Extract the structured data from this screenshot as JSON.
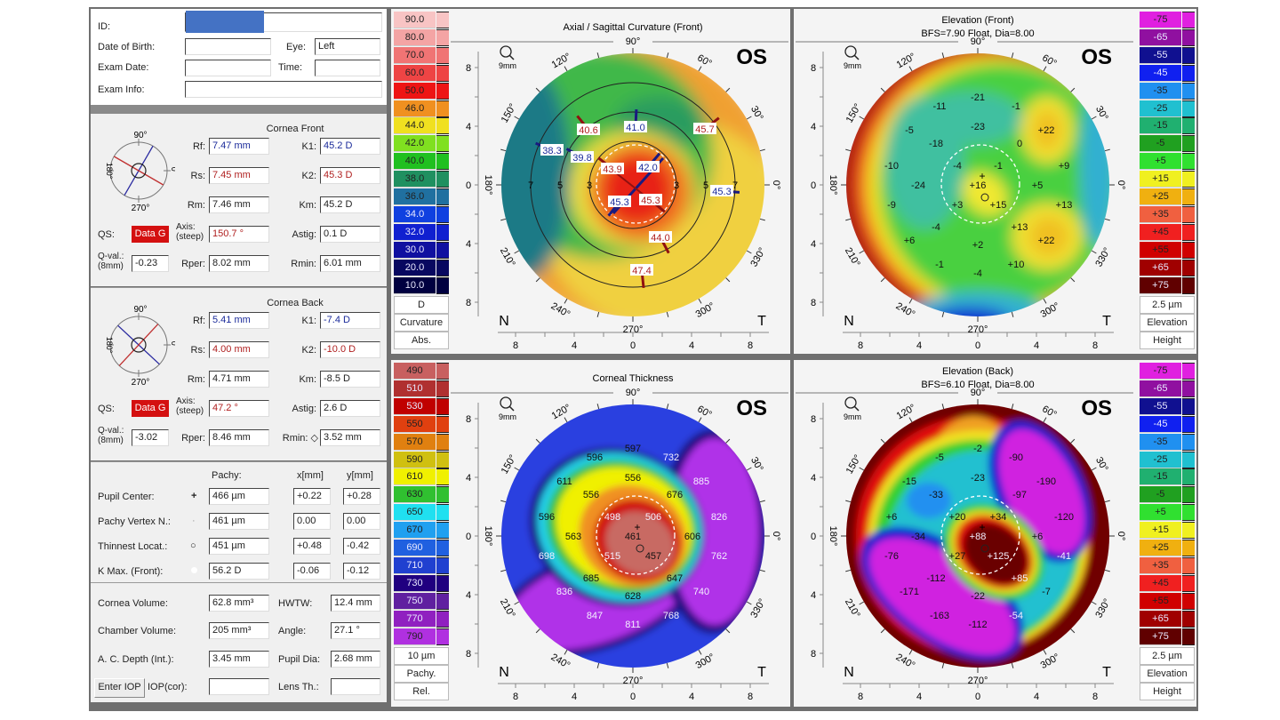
{
  "patient": {
    "id_label": "ID:",
    "dob_label": "Date of Birth:",
    "eye_label": "Eye:",
    "eye": "Left",
    "exam_date_label": "Exam Date:",
    "time_label": "Time:",
    "exam_info_label": "Exam Info:",
    "redaction_color": "#4472c4"
  },
  "compass_labels": {
    "top": "90°",
    "bottom": "270°",
    "left": "180°",
    "right": "0°"
  },
  "cornea_front": {
    "title": "Cornea Front",
    "rf_label": "Rf:",
    "rf": "7.47 mm",
    "rs_label": "Rs:",
    "rs": "7.45 mm",
    "rm_label": "Rm:",
    "rm": "7.46 mm",
    "k1_label": "K1:",
    "k1": "45.2 D",
    "k2_label": "K2:",
    "k2": "45.3 D",
    "km_label": "Km:",
    "km": "45.2 D",
    "qs_label": "QS:",
    "qs": "Data G",
    "axis_label": "Axis:",
    "axis_sub": "(steep)",
    "axis": "150.7 °",
    "astig_label": "Astig:",
    "astig": "0.1 D",
    "qval_label": "Q-val.:",
    "qval_sub": "(8mm)",
    "qval": "-0.23",
    "rper_label": "Rper:",
    "rper": "8.02 mm",
    "rmin_label": "Rmin:",
    "rmin": "6.01 mm"
  },
  "cornea_back": {
    "title": "Cornea Back",
    "rf_label": "Rf:",
    "rf": "5.41 mm",
    "rs_label": "Rs:",
    "rs": "4.00 mm",
    "rm_label": "Rm:",
    "rm": "4.71 mm",
    "k1_label": "K1:",
    "k1": "-7.4 D",
    "k2_label": "K2:",
    "k2": "-10.0 D",
    "km_label": "Km:",
    "km": "-8.5 D",
    "qs_label": "QS:",
    "qs": "Data G",
    "axis_label": "Axis:",
    "axis_sub": "(steep)",
    "axis": "47.2 °",
    "astig_label": "Astig:",
    "astig": "2.6 D",
    "qval_label": "Q-val.:",
    "qval_sub": "(8mm)",
    "qval": "-3.02",
    "rper_label": "Rper:",
    "rper": "8.46 mm",
    "rmin_label": "Rmin: ◇",
    "rmin": "3.52 mm"
  },
  "pachy": {
    "col_pachy": "Pachy:",
    "col_x": "x[mm]",
    "col_y": "y[mm]",
    "rows": [
      {
        "label": "Pupil Center:",
        "symbol": "+",
        "pachy": "466 µm",
        "x": "+0.22",
        "y": "+0.28"
      },
      {
        "label": "Pachy Vertex N.:",
        "symbol": "·",
        "pachy": "461 µm",
        "x": "0.00",
        "y": "0.00"
      },
      {
        "label": "Thinnest Locat.:",
        "symbol": "○",
        "pachy": "451 µm",
        "x": "+0.48",
        "y": "-0.42"
      },
      {
        "label": "K Max. (Front):",
        "symbol": "",
        "pachy": "56.2 D",
        "x": "-0.06",
        "y": "-0.12"
      }
    ]
  },
  "volumes": {
    "cornea_volume_label": "Cornea Volume:",
    "cornea_volume": "62.8 mm³",
    "hwtw_label": "HWTW:",
    "hwtw": "12.4 mm",
    "chamber_volume_label": "Chamber Volume:",
    "chamber_volume": "205 mm³",
    "angle_label": "Angle:",
    "angle": "27.1 °",
    "ac_depth_label": "A. C. Depth (Int.):",
    "ac_depth": "3.45 mm",
    "pupil_dia_label": "Pupil Dia:",
    "pupil_dia": "2.68 mm",
    "enter_iop": "Enter IOP",
    "iop_cor_label": "IOP(cor):",
    "lens_th_label": "Lens Th.:"
  },
  "map_common": {
    "eye": "OS",
    "zoom": "9mm",
    "nasal": "N",
    "temporal": "T",
    "axis_ticks": [
      "8",
      "4",
      "0",
      "4",
      "8"
    ],
    "degree_labels": [
      "0°",
      "30°",
      "60°",
      "90°",
      "120°",
      "150°",
      "180°",
      "210°",
      "240°",
      "270°",
      "300°",
      "330°"
    ]
  },
  "maps": {
    "curvature": {
      "title": "Axial / Sagittal Curvature (Front)",
      "ring_labels": [
        "3",
        "5",
        "7"
      ],
      "meridian_values": [
        {
          "text": "40.6",
          "color": "#b02020"
        },
        {
          "text": "41.0",
          "color": "#1a2a9a"
        },
        {
          "text": "45.7",
          "color": "#b02020"
        },
        {
          "text": "38.3",
          "color": "#1a2a9a"
        },
        {
          "text": "39.8",
          "color": "#1a2a9a"
        },
        {
          "text": "43.9",
          "color": "#b02020"
        },
        {
          "text": "42.0",
          "color": "#1a2a9a"
        },
        {
          "text": "45.3",
          "color": "#1a2a9a"
        },
        {
          "text": "45.3",
          "color": "#b02020"
        },
        {
          "text": "45.3",
          "color": "#1a2a9a"
        },
        {
          "text": "44.0",
          "color": "#b02020"
        },
        {
          "text": "47.4",
          "color": "#b02020"
        }
      ],
      "scale": {
        "values": [
          "90.0",
          "80.0",
          "70.0",
          "60.0",
          "50.0",
          "46.0",
          "44.0",
          "42.0",
          "40.0",
          "38.0",
          "36.0",
          "34.0",
          "32.0",
          "30.0",
          "20.0",
          "10.0"
        ],
        "colors": [
          "#f8c4c4",
          "#f4a4a4",
          "#f07474",
          "#ee4444",
          "#ee1414",
          "#f09020",
          "#f0e020",
          "#80e020",
          "#20c020",
          "#209060",
          "#2070a0",
          "#1040e0",
          "#1020d0",
          "#1010a0",
          "#080860",
          "#000040"
        ],
        "unit": "D",
        "type": "Curvature",
        "mode": "Abs."
      }
    },
    "elevation_front": {
      "title": "Elevation (Front)",
      "subtitle": "BFS=7.90 Float, Dia=8.00",
      "values": [
        "-21",
        "-11",
        "-1",
        "-5",
        "-23",
        "+22",
        "-18",
        "0",
        "-10",
        "-4",
        "-1",
        "+9",
        "-24",
        "+16",
        "+5",
        "-9",
        "+3",
        "+15",
        "+13",
        "-4",
        "+13",
        "+6",
        "+2",
        "+22",
        "-1",
        "+10",
        "-4"
      ]
    },
    "thickness": {
      "title": "Corneal Thickness",
      "values": [
        "597",
        "596",
        "732",
        "611",
        "556",
        "885",
        "556",
        "676",
        "596",
        "498",
        "506",
        "826",
        "563",
        "461",
        "606",
        "698",
        "515",
        "457",
        "762",
        "685",
        "647",
        "836",
        "628",
        "740",
        "847",
        "768",
        "811"
      ],
      "scale": {
        "values": [
          "490",
          "510",
          "530",
          "550",
          "570",
          "590",
          "610",
          "630",
          "650",
          "670",
          "690",
          "710",
          "730",
          "750",
          "770",
          "790"
        ],
        "colors": [
          "#c86060",
          "#b03030",
          "#c00000",
          "#e04010",
          "#e08010",
          "#d0c010",
          "#f0f000",
          "#30c030",
          "#20e0f0",
          "#20a0f0",
          "#2060e0",
          "#2040d0",
          "#200080",
          "#6020a0",
          "#9020c0",
          "#b030e0"
        ],
        "unit": "10 µm",
        "type": "Pachy.",
        "mode": "Rel."
      }
    },
    "elevation_back": {
      "title": "Elevation (Back)",
      "subtitle": "BFS=6.10 Float, Dia=8.00",
      "values": [
        "-2",
        "-5",
        "-90",
        "-15",
        "-23",
        "-190",
        "-33",
        "-97",
        "+6",
        "+20",
        "+34",
        "-120",
        "-34",
        "+88",
        "+6",
        "-76",
        "+27",
        "+125",
        "-41",
        "-112",
        "+85",
        "-171",
        "-22",
        "-7",
        "-163",
        "-54",
        "-112"
      ]
    },
    "elevation_scale": {
      "values": [
        "-75",
        "-65",
        "-55",
        "-45",
        "-35",
        "-25",
        "-15",
        "-5",
        "+5",
        "+15",
        "+25",
        "+35",
        "+45",
        "+55",
        "+65",
        "+75"
      ],
      "colors": [
        "#e020e0",
        "#9010a0",
        "#101090",
        "#1020f0",
        "#2090f0",
        "#20c0d0",
        "#20b070",
        "#20a020",
        "#30e030",
        "#f0f020",
        "#f0b010",
        "#f06040",
        "#f02020",
        "#d00000",
        "#a00000",
        "#600000"
      ],
      "unit": "2.5 µm",
      "type": "Elevation",
      "mode": "Height"
    }
  }
}
